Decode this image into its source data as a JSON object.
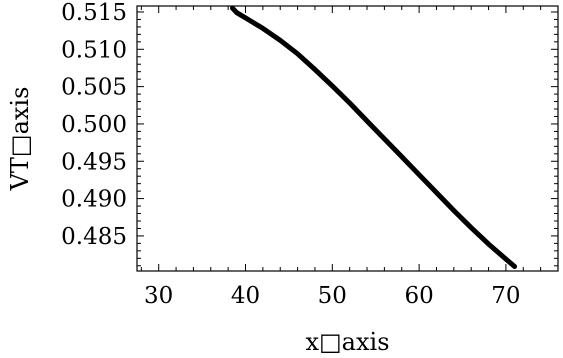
{
  "chart_data": {
    "type": "line",
    "title": "",
    "xlabel": "x□axis",
    "ylabel": "VT□axis",
    "xlim": [
      27.5,
      76
    ],
    "ylim": [
      0.4803,
      0.5158
    ],
    "xticks": [
      30,
      40,
      50,
      60,
      70
    ],
    "xtick_labels": [
      "30",
      "40",
      "50",
      "60",
      "70"
    ],
    "yticks": [
      0.485,
      0.49,
      0.495,
      0.5,
      0.505,
      0.51,
      0.515
    ],
    "ytick_labels": [
      "0.485",
      "0.490",
      "0.495",
      "0.500",
      "0.505",
      "0.510",
      "0.515"
    ],
    "grid": false,
    "series": [
      {
        "x": [
          38.5,
          39.0,
          40.0,
          42.0,
          44.0,
          46.0,
          48.0,
          50.0,
          52.0,
          54.0,
          56.0,
          58.0,
          60.0,
          62.0,
          64.0,
          66.0,
          68.0,
          70.0,
          71.0
        ],
        "y": [
          0.5155,
          0.5149,
          0.5142,
          0.5128,
          0.5112,
          0.5094,
          0.5073,
          0.5051,
          0.5028,
          0.5004,
          0.498,
          0.4956,
          0.4932,
          0.4908,
          0.4884,
          0.4861,
          0.4839,
          0.4819,
          0.4809
        ]
      }
    ]
  }
}
